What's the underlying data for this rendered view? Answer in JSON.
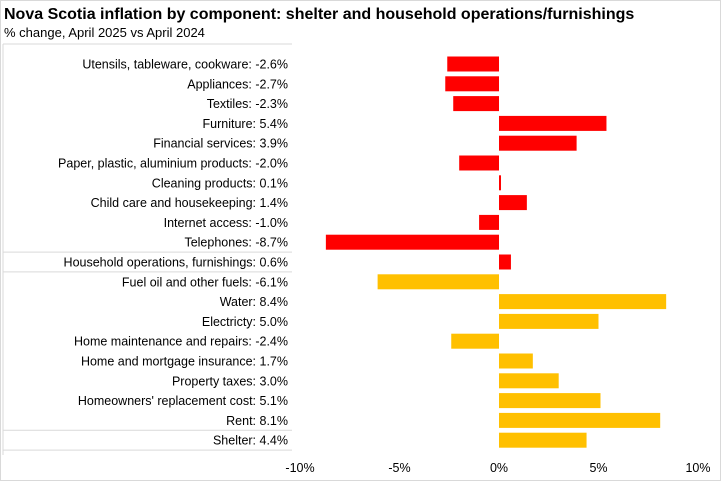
{
  "chart_data": {
    "type": "bar",
    "orientation": "horizontal",
    "title": "Nova Scotia inflation by component: shelter and household operations/furnishings",
    "subtitle": "% change, April 2025 vs April 2024",
    "xlabel": "",
    "ylabel": "",
    "xlim": [
      -10,
      10
    ],
    "x_ticks": [
      "-10%",
      "-5%",
      "0%",
      "5%",
      "10%"
    ],
    "x_tick_values": [
      -10,
      -5,
      0,
      5,
      10
    ],
    "grid": false,
    "legend": "none",
    "categories": [
      "Utensils, tableware, cookware: -2.6%",
      "Appliances: -2.7%",
      "Textiles: -2.3%",
      "Furniture: 5.4%",
      "Financial services: 3.9%",
      "Paper, plastic, aluminium products: -2.0%",
      "Cleaning products: 0.1%",
      "Child care and housekeeping: 1.4%",
      "Internet access: -1.0%",
      "Telephones: -8.7%",
      "Household operations, furnishings: 0.6%",
      "Fuel oil and other fuels: -6.1%",
      "Water: 8.4%",
      "Electricty: 5.0%",
      "Home maintenance and repairs: -2.4%",
      "Home and mortgage insurance: 1.7%",
      "Property taxes: 3.0%",
      "Homeowners' replacement cost: 5.1%",
      "Rent: 8.1%",
      "Shelter: 4.4%"
    ],
    "values": [
      -2.6,
      -2.7,
      -2.3,
      5.4,
      3.9,
      -2.0,
      0.1,
      1.4,
      -1.0,
      -8.7,
      0.6,
      -6.1,
      8.4,
      5.0,
      -2.4,
      1.7,
      3.0,
      5.1,
      8.1,
      4.4
    ],
    "groups": [
      "household",
      "household",
      "household",
      "household",
      "household",
      "household",
      "household",
      "household",
      "household",
      "household",
      "household",
      "shelter",
      "shelter",
      "shelter",
      "shelter",
      "shelter",
      "shelter",
      "shelter",
      "shelter",
      "shelter"
    ],
    "colors": {
      "household": "#FF0000",
      "shelter": "#FFC000"
    }
  }
}
